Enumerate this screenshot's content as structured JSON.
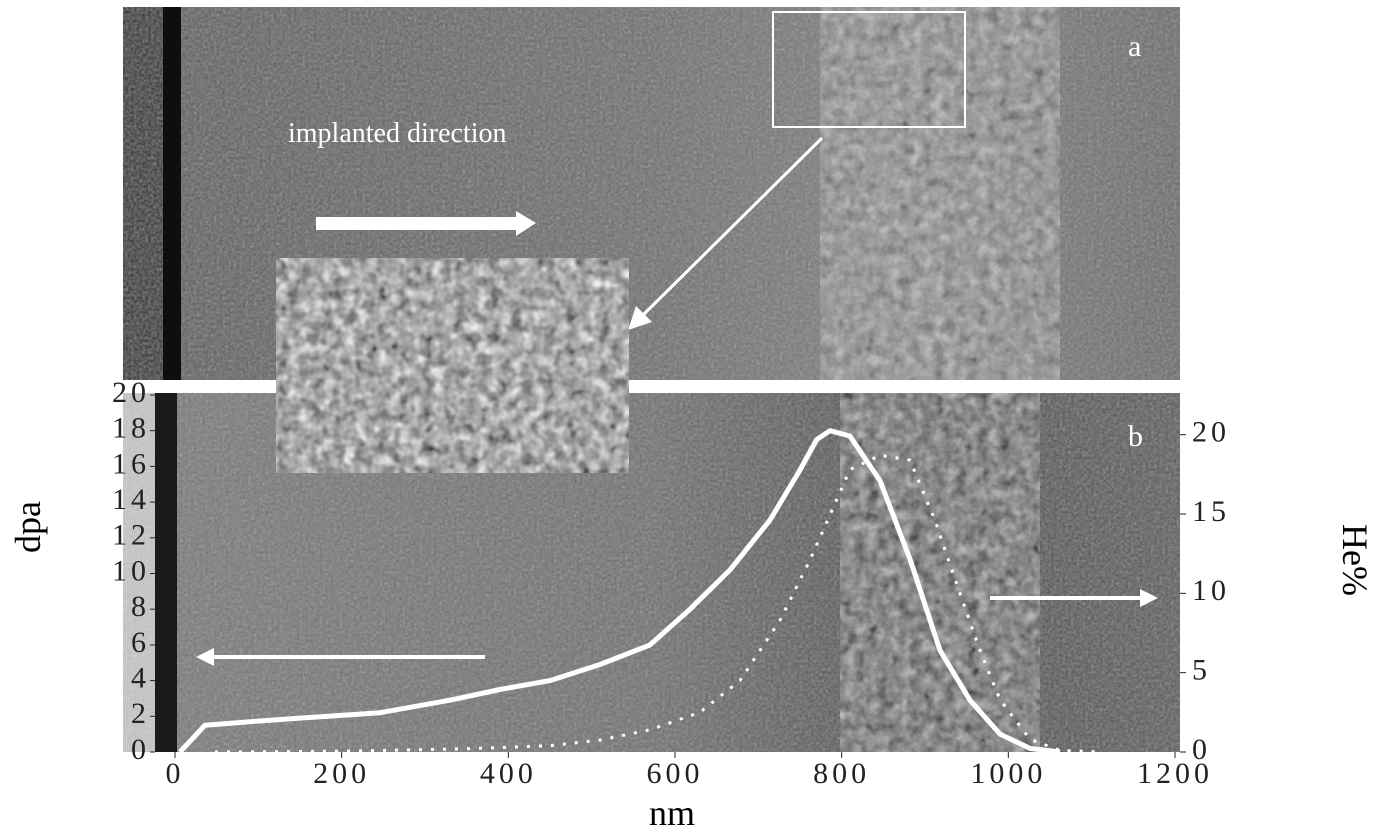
{
  "chart_data": {
    "type": "line",
    "annotations": {
      "direction": "implanted direction",
      "panel_a": "a",
      "panel_b": "b"
    },
    "xlabel": "nm",
    "ylabel": "dpa",
    "y2label": "He%",
    "xlim": [
      0,
      1200
    ],
    "xticks": [
      0,
      200,
      400,
      600,
      800,
      1000,
      1200
    ],
    "ylim": [
      0,
      20
    ],
    "yticks": [
      0,
      2,
      4,
      6,
      8,
      10,
      12,
      14,
      16,
      18,
      20
    ],
    "y2lim": [
      0,
      22.5
    ],
    "y2ticks": [
      0,
      5,
      10,
      15,
      20
    ],
    "series": [
      {
        "name": "dpa",
        "color": "#ffffff",
        "style": "solid",
        "x": [
          6,
          36,
          90,
          150,
          246,
          330,
          390,
          450,
          510,
          570,
          618,
          666,
          714,
          750,
          770,
          786,
          810,
          846,
          882,
          918,
          954,
          990,
          1026,
          1062
        ],
        "values": [
          0,
          1.5,
          1.7,
          1.9,
          2.2,
          2.9,
          3.5,
          4,
          4.9,
          6,
          8,
          10.2,
          13,
          15.8,
          17.5,
          18,
          17.7,
          15.2,
          10.8,
          5.7,
          2.9,
          1,
          0.2,
          0
        ]
      },
      {
        "name": "He%",
        "color": "#ffffff",
        "style": "dotted",
        "axis": "y2",
        "x": [
          48,
          200,
          350,
          450,
          510,
          570,
          630,
          678,
          726,
          762,
          810,
          846,
          882,
          912,
          936,
          966,
          990,
          1026,
          1062,
          1110
        ],
        "values": [
          0,
          0.05,
          0.2,
          0.4,
          0.75,
          1.4,
          2.5,
          4.5,
          8.3,
          12.1,
          17.8,
          18.7,
          18.4,
          14.6,
          10.9,
          6.4,
          3.3,
          0.8,
          0.1,
          0
        ]
      }
    ]
  }
}
